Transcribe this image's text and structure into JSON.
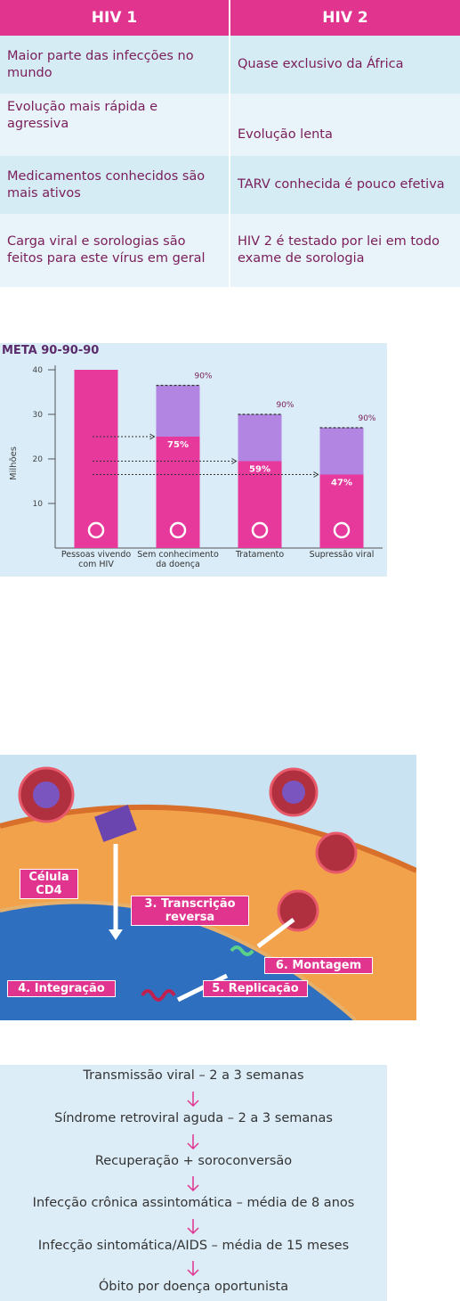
{
  "table": {
    "header": [
      "HIV 1",
      "HIV 2"
    ],
    "rows": [
      [
        "Maior parte das infecções no mundo",
        "Quase exclusivo da África"
      ],
      [
        "Evolução mais rápida e agressiva",
        "Evolução lenta"
      ],
      [
        "Medicamentos conhecidos são mais ativos",
        "TARV conhecida é pouco efetiva"
      ],
      [
        "Carga viral e sorologias são feitos para este vírus em geral",
        "HIV 2 é testado por lei em todo exame de sorologia"
      ]
    ]
  },
  "chart_data": {
    "type": "bar",
    "title": "META 90-90-90",
    "y_label": "Milhões",
    "categories": [
      "Pessoas vivendo com HIV",
      "Sem conhecimento da doença",
      "Tratamento",
      "Supressão viral"
    ],
    "series": [
      {
        "color": "#e6399b",
        "values": [
          40,
          25,
          19.5,
          16.5
        ],
        "labels": [
          null,
          "75%",
          "59%",
          "47%"
        ]
      },
      {
        "color": "#b285e3",
        "values": [
          null,
          36.5,
          30,
          27
        ],
        "labels": [
          null,
          "90%",
          "90%",
          "90%"
        ]
      }
    ],
    "ylim": [
      0,
      41
    ],
    "yticks": [
      10,
      20,
      30,
      40
    ]
  },
  "diagram": {
    "labels": [
      "Célula CD4",
      "3. Transcrição reversa",
      "4. Integração",
      "5. Replicação",
      "6. Montagem"
    ]
  },
  "flow": {
    "steps": [
      "Transmissão viral – 2 a 3 semanas",
      "Síndrome retroviral aguda – 2 a 3 semanas",
      "Recuperação + soroconversão",
      "Infecção crônica assintomática – média de 8 anos",
      "Infecção sintomática/AIDS – média de 15 meses",
      "Óbito por doença oportunista"
    ]
  }
}
